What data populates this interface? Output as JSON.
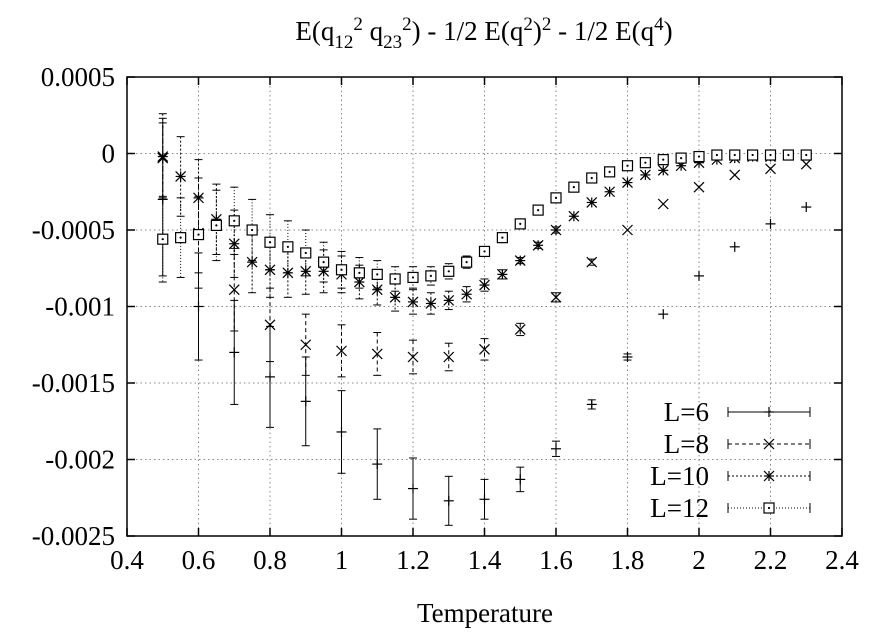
{
  "chart_data": {
    "type": "scatter",
    "title_parts": {
      "main": "E(q",
      "s1": "12",
      "p1": "2",
      "sp": " q",
      "s2": "23",
      "p2": "2",
      "mid": ") - 1/2 E(q",
      "p3": "2",
      "mid2": ")",
      "p4": "2",
      "tail": " - 1/2 E(q",
      "p5": "4",
      "end": ")"
    },
    "xlabel": "Temperature",
    "ylabel": "",
    "xlim": [
      0.4,
      2.4
    ],
    "ylim": [
      -0.0025,
      0.0005
    ],
    "xticks": [
      0.4,
      0.6,
      0.8,
      1,
      1.2,
      1.4,
      1.6,
      1.8,
      2,
      2.2,
      2.4
    ],
    "xtick_labels": [
      "0.4",
      "0.6",
      "0.8",
      "1",
      "1.2",
      "1.4",
      "1.6",
      "1.8",
      "2",
      "2.2",
      "2.4"
    ],
    "yticks": [
      0.0005,
      0,
      -0.0005,
      -0.001,
      -0.0015,
      -0.002,
      -0.0025
    ],
    "ytick_labels": [
      "0.0005",
      "0",
      "-0.0005",
      "-0.001",
      "-0.0015",
      "-0.002",
      "-0.0025"
    ],
    "grid": true,
    "legend_position": "bottom-right",
    "series": [
      {
        "name": "L=6",
        "marker": "plus",
        "line_style": "solid",
        "points": [
          {
            "x": 0.5,
            "y": -0.0003,
            "err": 0.0005
          },
          {
            "x": 0.6,
            "y": -0.001,
            "err": 0.00035
          },
          {
            "x": 0.7,
            "y": -0.0013,
            "err": 0.00034
          },
          {
            "x": 0.8,
            "y": -0.00146,
            "err": 0.00033
          },
          {
            "x": 0.9,
            "y": -0.00162,
            "err": 0.00029
          },
          {
            "x": 1.0,
            "y": -0.00182,
            "err": 0.00027
          },
          {
            "x": 1.1,
            "y": -0.00203,
            "err": 0.00023
          },
          {
            "x": 1.2,
            "y": -0.00219,
            "err": 0.0002
          },
          {
            "x": 1.3,
            "y": -0.00227,
            "err": 0.00016
          },
          {
            "x": 1.4,
            "y": -0.00226,
            "err": 0.00013
          },
          {
            "x": 1.5,
            "y": -0.00213,
            "err": 8e-05
          },
          {
            "x": 1.6,
            "y": -0.00193,
            "err": 5e-05
          },
          {
            "x": 1.7,
            "y": -0.00164,
            "err": 3e-05
          },
          {
            "x": 1.8,
            "y": -0.00133,
            "err": 2e-05
          },
          {
            "x": 1.9,
            "y": -0.00105,
            "err": 1e-05
          },
          {
            "x": 2.0,
            "y": -0.0008,
            "err": 1e-05
          },
          {
            "x": 2.1,
            "y": -0.00061,
            "err": 1e-05
          },
          {
            "x": 2.2,
            "y": -0.00046,
            "err": 1e-05
          },
          {
            "x": 2.3,
            "y": -0.00035,
            "err": 1e-05
          }
        ]
      },
      {
        "name": "L=8",
        "marker": "cross",
        "line_style": "dashed",
        "points": [
          {
            "x": 0.5,
            "y": -3e-05,
            "err": 0.00026
          },
          {
            "x": 0.6,
            "y": -0.00052,
            "err": 0.00036
          },
          {
            "x": 0.7,
            "y": -0.00089,
            "err": 0.00027
          },
          {
            "x": 0.8,
            "y": -0.00112,
            "err": 0.00024
          },
          {
            "x": 0.9,
            "y": -0.00125,
            "err": 0.0002
          },
          {
            "x": 1.0,
            "y": -0.00129,
            "err": 0.00017
          },
          {
            "x": 1.1,
            "y": -0.00131,
            "err": 0.00014
          },
          {
            "x": 1.2,
            "y": -0.00133,
            "err": 0.00011
          },
          {
            "x": 1.3,
            "y": -0.00133,
            "err": 9e-05
          },
          {
            "x": 1.4,
            "y": -0.00128,
            "err": 7e-05
          },
          {
            "x": 1.5,
            "y": -0.00115,
            "err": 4e-05
          },
          {
            "x": 1.6,
            "y": -0.00094,
            "err": 3e-05
          },
          {
            "x": 1.7,
            "y": -0.00071,
            "err": 2e-05
          },
          {
            "x": 1.8,
            "y": -0.0005,
            "err": 1e-05
          },
          {
            "x": 1.9,
            "y": -0.00033,
            "err": 1e-05
          },
          {
            "x": 2.0,
            "y": -0.00022,
            "err": 1e-05
          },
          {
            "x": 2.1,
            "y": -0.00014,
            "err": 1e-05
          },
          {
            "x": 2.2,
            "y": -0.0001,
            "err": 1e-05
          },
          {
            "x": 2.3,
            "y": -7e-05,
            "err": 1e-05
          }
        ]
      },
      {
        "name": "L=10",
        "marker": "star",
        "line_style": "dotted",
        "points": [
          {
            "x": 0.5,
            "y": -2e-05,
            "err": 0.00028
          },
          {
            "x": 0.55,
            "y": -0.00015,
            "err": 0.00026
          },
          {
            "x": 0.6,
            "y": -0.00029,
            "err": 0.00025
          },
          {
            "x": 0.65,
            "y": -0.00043,
            "err": 0.00023
          },
          {
            "x": 0.7,
            "y": -0.00059,
            "err": 0.00022
          },
          {
            "x": 0.75,
            "y": -0.00071,
            "err": 0.0002
          },
          {
            "x": 0.8,
            "y": -0.00076,
            "err": 0.00018
          },
          {
            "x": 0.85,
            "y": -0.00078,
            "err": 0.00016
          },
          {
            "x": 0.9,
            "y": -0.00077,
            "err": 0.00015
          },
          {
            "x": 0.95,
            "y": -0.00077,
            "err": 0.00014
          },
          {
            "x": 1.0,
            "y": -0.00079,
            "err": 0.00012
          },
          {
            "x": 1.05,
            "y": -0.00084,
            "err": 0.00011
          },
          {
            "x": 1.1,
            "y": -0.00089,
            "err": 0.0001
          },
          {
            "x": 1.15,
            "y": -0.00094,
            "err": 9e-05
          },
          {
            "x": 1.2,
            "y": -0.00097,
            "err": 8e-05
          },
          {
            "x": 1.25,
            "y": -0.00098,
            "err": 7e-05
          },
          {
            "x": 1.3,
            "y": -0.00096,
            "err": 6e-05
          },
          {
            "x": 1.35,
            "y": -0.00092,
            "err": 5e-05
          },
          {
            "x": 1.4,
            "y": -0.00086,
            "err": 4e-05
          },
          {
            "x": 1.45,
            "y": -0.00079,
            "err": 3e-05
          },
          {
            "x": 1.5,
            "y": -0.0007,
            "err": 2e-05
          },
          {
            "x": 1.55,
            "y": -0.0006,
            "err": 2e-05
          },
          {
            "x": 1.6,
            "y": -0.0005,
            "err": 2e-05
          },
          {
            "x": 1.65,
            "y": -0.00041,
            "err": 1e-05
          },
          {
            "x": 1.7,
            "y": -0.00032,
            "err": 1e-05
          },
          {
            "x": 1.75,
            "y": -0.00025,
            "err": 1e-05
          },
          {
            "x": 1.8,
            "y": -0.00019,
            "err": 1e-05
          },
          {
            "x": 1.85,
            "y": -0.00014,
            "err": 1e-05
          },
          {
            "x": 1.9,
            "y": -0.00011,
            "err": 1e-05
          },
          {
            "x": 1.95,
            "y": -8e-05,
            "err": 1e-05
          },
          {
            "x": 2.0,
            "y": -6e-05,
            "err": 1e-05
          },
          {
            "x": 2.05,
            "y": -4e-05,
            "err": 1e-05
          },
          {
            "x": 2.1,
            "y": -3e-05,
            "err": 1e-05
          },
          {
            "x": 2.15,
            "y": -2e-05,
            "err": 1e-05
          },
          {
            "x": 2.2,
            "y": -2e-05,
            "err": 1e-05
          },
          {
            "x": 2.25,
            "y": -1e-05,
            "err": 1e-05
          },
          {
            "x": 2.3,
            "y": -1e-05,
            "err": 1e-05
          }
        ]
      },
      {
        "name": "L=12",
        "marker": "dotted-square",
        "line_style": "dotted-fine",
        "points": [
          {
            "x": 0.5,
            "y": -0.00056,
            "err": 0.00028
          },
          {
            "x": 0.55,
            "y": -0.00055,
            "err": 0.00026
          },
          {
            "x": 0.6,
            "y": -0.00053,
            "err": 0.00025
          },
          {
            "x": 0.65,
            "y": -0.00047,
            "err": 0.00023
          },
          {
            "x": 0.7,
            "y": -0.00044,
            "err": 0.00022
          },
          {
            "x": 0.75,
            "y": -0.0005,
            "err": 0.0002
          },
          {
            "x": 0.8,
            "y": -0.00058,
            "err": 0.00018
          },
          {
            "x": 0.85,
            "y": -0.00061,
            "err": 0.00017
          },
          {
            "x": 0.9,
            "y": -0.00065,
            "err": 0.00015
          },
          {
            "x": 0.95,
            "y": -0.00071,
            "err": 0.00013
          },
          {
            "x": 1.0,
            "y": -0.00076,
            "err": 0.00012
          },
          {
            "x": 1.05,
            "y": -0.00078,
            "err": 0.0001
          },
          {
            "x": 1.1,
            "y": -0.00079,
            "err": 9e-05
          },
          {
            "x": 1.15,
            "y": -0.00082,
            "err": 8e-05
          },
          {
            "x": 1.2,
            "y": -0.00081,
            "err": 7e-05
          },
          {
            "x": 1.25,
            "y": -0.0008,
            "err": 6e-05
          },
          {
            "x": 1.3,
            "y": -0.00077,
            "err": 5e-05
          },
          {
            "x": 1.35,
            "y": -0.00071,
            "err": 4e-05
          },
          {
            "x": 1.4,
            "y": -0.00064,
            "err": 3e-05
          },
          {
            "x": 1.45,
            "y": -0.00055,
            "err": 2e-05
          },
          {
            "x": 1.5,
            "y": -0.00046,
            "err": 2e-05
          },
          {
            "x": 1.55,
            "y": -0.00037,
            "err": 1e-05
          },
          {
            "x": 1.6,
            "y": -0.00029,
            "err": 1e-05
          },
          {
            "x": 1.65,
            "y": -0.00022,
            "err": 1e-05
          },
          {
            "x": 1.7,
            "y": -0.00016,
            "err": 1e-05
          },
          {
            "x": 1.75,
            "y": -0.00012,
            "err": 1e-05
          },
          {
            "x": 1.8,
            "y": -8e-05,
            "err": 1e-05
          },
          {
            "x": 1.85,
            "y": -6e-05,
            "err": 1e-05
          },
          {
            "x": 1.9,
            "y": -4e-05,
            "err": 1e-05
          },
          {
            "x": 1.95,
            "y": -3e-05,
            "err": 1e-05
          },
          {
            "x": 2.0,
            "y": -2e-05,
            "err": 1e-05
          },
          {
            "x": 2.05,
            "y": -1e-05,
            "err": 1e-05
          },
          {
            "x": 2.1,
            "y": -1e-05,
            "err": 1e-05
          },
          {
            "x": 2.15,
            "y": -1e-05,
            "err": 1e-05
          },
          {
            "x": 2.2,
            "y": -1e-05,
            "err": 1e-05
          },
          {
            "x": 2.25,
            "y": -1e-05,
            "err": 1e-05
          },
          {
            "x": 2.3,
            "y": -1e-05,
            "err": 1e-05
          }
        ]
      }
    ]
  }
}
